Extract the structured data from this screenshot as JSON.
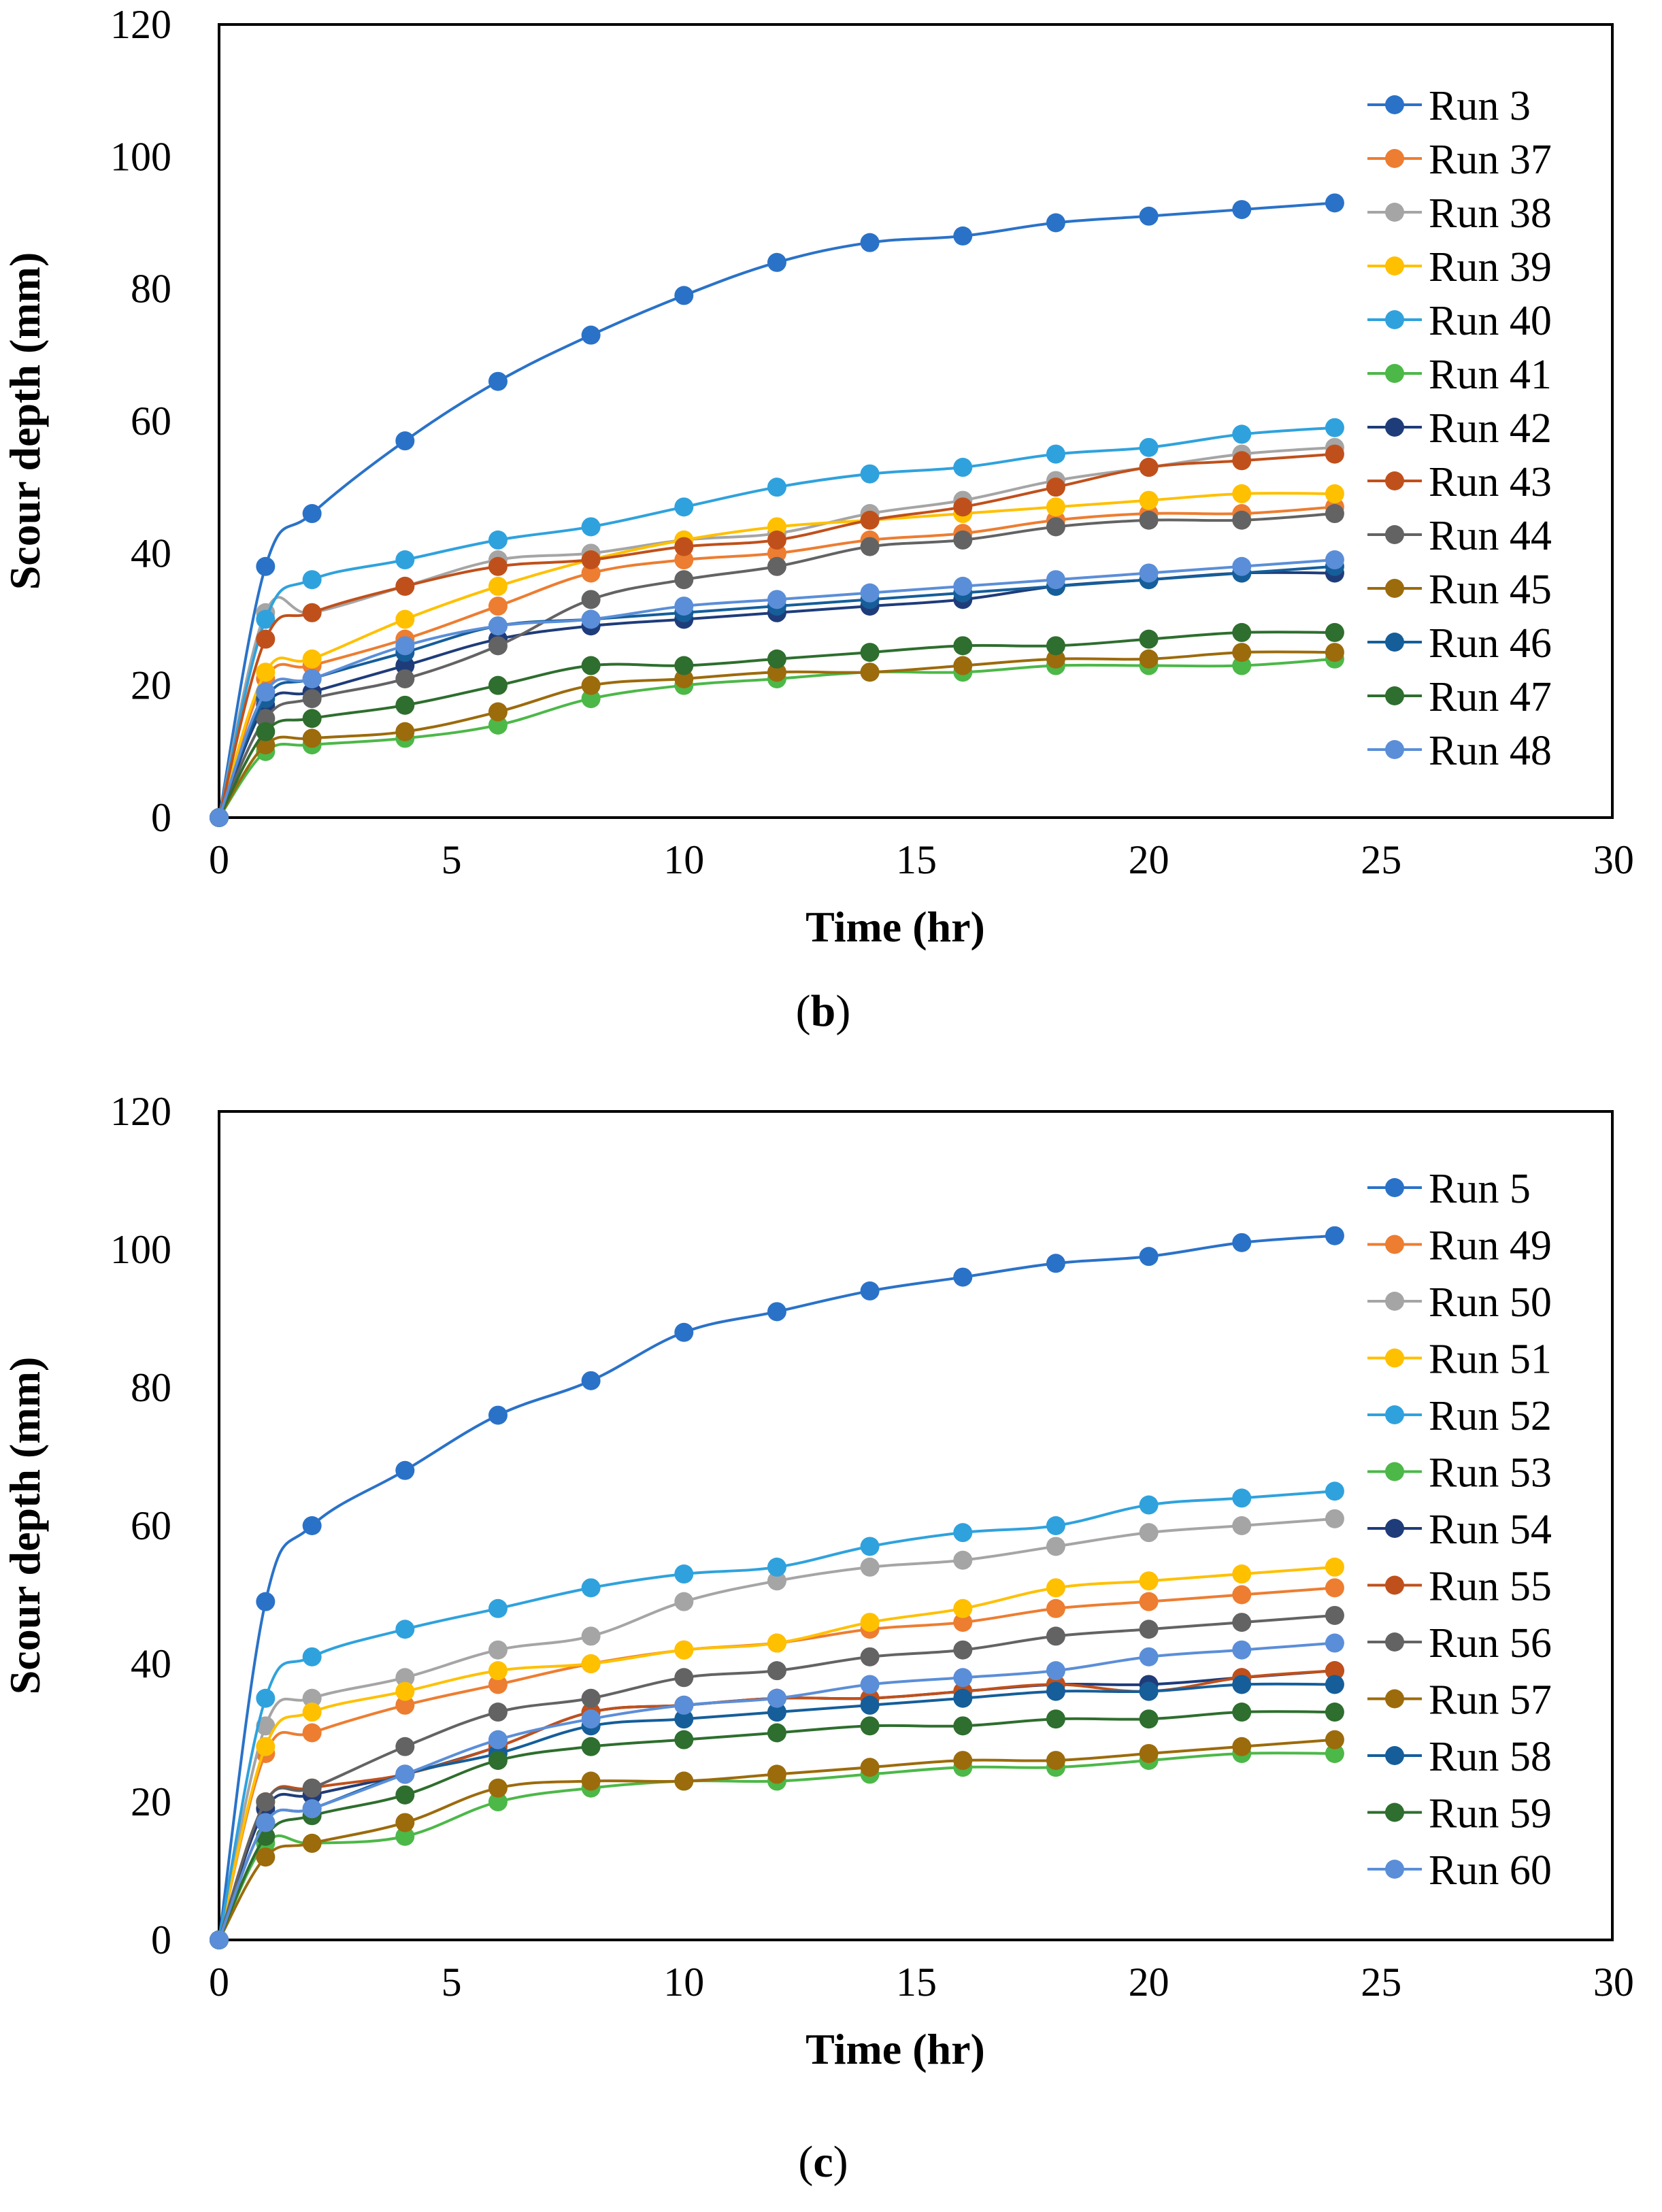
{
  "chart_data": [
    {
      "type": "line",
      "panel_label": "b",
      "xlabel": "Time (hr)",
      "ylabel": "Scour depth (mm)",
      "xlim": [
        0,
        30
      ],
      "ylim": [
        0,
        120
      ],
      "x_ticks": [
        "0",
        "5",
        "10",
        "15",
        "20",
        "25",
        "30"
      ],
      "y_ticks": [
        "0",
        "20",
        "40",
        "60",
        "80",
        "100",
        "120"
      ],
      "grid": false,
      "legend": "right",
      "x": [
        0,
        1,
        2,
        4,
        6,
        8,
        10,
        12,
        14,
        16,
        18,
        20,
        22,
        24
      ],
      "series": [
        {
          "name": "Run 3",
          "color": "#2a72c8",
          "values": [
            0,
            38,
            46,
            57,
            66,
            73,
            79,
            84,
            87,
            88,
            90,
            91,
            92,
            93
          ]
        },
        {
          "name": "Run 37",
          "color": "#ed7d31",
          "values": [
            0,
            21,
            23,
            27,
            32,
            37,
            39,
            40,
            42,
            43,
            45,
            46,
            46,
            47
          ]
        },
        {
          "name": "Run 38",
          "color": "#a5a5a5",
          "values": [
            0,
            31,
            31,
            35,
            39,
            40,
            42,
            43,
            46,
            48,
            51,
            53,
            55,
            56
          ]
        },
        {
          "name": "Run 39",
          "color": "#ffc000",
          "values": [
            0,
            22,
            24,
            30,
            35,
            39,
            42,
            44,
            45,
            46,
            47,
            48,
            49,
            49
          ]
        },
        {
          "name": "Run 40",
          "color": "#2fa2dd",
          "values": [
            0,
            30,
            36,
            39,
            42,
            44,
            47,
            50,
            52,
            53,
            55,
            56,
            58,
            59
          ]
        },
        {
          "name": "Run 41",
          "color": "#4cb848",
          "values": [
            0,
            10,
            11,
            12,
            14,
            18,
            20,
            21,
            22,
            22,
            23,
            23,
            23,
            24
          ]
        },
        {
          "name": "Run 42",
          "color": "#1f3c7a",
          "values": [
            0,
            17,
            19,
            23,
            27,
            29,
            30,
            31,
            32,
            33,
            35,
            36,
            37,
            37
          ]
        },
        {
          "name": "Run 43",
          "color": "#c0501b",
          "values": [
            0,
            27,
            31,
            35,
            38,
            39,
            41,
            42,
            45,
            47,
            50,
            53,
            54,
            55
          ]
        },
        {
          "name": "Run 44",
          "color": "#636363",
          "values": [
            0,
            15,
            18,
            21,
            26,
            33,
            36,
            38,
            41,
            42,
            44,
            45,
            45,
            46
          ]
        },
        {
          "name": "Run 45",
          "color": "#9c6b0c",
          "values": [
            0,
            11,
            12,
            13,
            16,
            20,
            21,
            22,
            22,
            23,
            24,
            24,
            25,
            25
          ]
        },
        {
          "name": "Run 46",
          "color": "#155e9a",
          "values": [
            0,
            18,
            21,
            25,
            29,
            30,
            31,
            32,
            33,
            34,
            35,
            36,
            37,
            38
          ]
        },
        {
          "name": "Run 47",
          "color": "#2e6e2e",
          "values": [
            0,
            13,
            15,
            17,
            20,
            23,
            23,
            24,
            25,
            26,
            26,
            27,
            28,
            28
          ]
        },
        {
          "name": "Run 48",
          "color": "#5b8ed8",
          "values": [
            0,
            19,
            21,
            26,
            29,
            30,
            32,
            33,
            34,
            35,
            36,
            37,
            38,
            39
          ]
        }
      ]
    },
    {
      "type": "line",
      "panel_label": "c",
      "xlabel": "Time (hr)",
      "ylabel": "Scour depth (mm)",
      "xlim": [
        0,
        30
      ],
      "ylim": [
        0,
        120
      ],
      "x_ticks": [
        "0",
        "5",
        "10",
        "15",
        "20",
        "25",
        "30"
      ],
      "y_ticks": [
        "0",
        "20",
        "40",
        "60",
        "80",
        "100",
        "120"
      ],
      "grid": false,
      "legend": "right",
      "x": [
        0,
        1,
        2,
        4,
        6,
        8,
        10,
        12,
        14,
        16,
        18,
        20,
        22,
        24
      ],
      "series": [
        {
          "name": "Run 5",
          "color": "#2a72c8",
          "values": [
            0,
            49,
            60,
            68,
            76,
            81,
            88,
            91,
            94,
            96,
            98,
            99,
            101,
            102
          ]
        },
        {
          "name": "Run 49",
          "color": "#ed7d31",
          "values": [
            0,
            27,
            30,
            34,
            37,
            40,
            42,
            43,
            45,
            46,
            48,
            49,
            50,
            51
          ]
        },
        {
          "name": "Run 50",
          "color": "#a5a5a5",
          "values": [
            0,
            31,
            35,
            38,
            42,
            44,
            49,
            52,
            54,
            55,
            57,
            59,
            60,
            61
          ]
        },
        {
          "name": "Run 51",
          "color": "#ffc000",
          "values": [
            0,
            28,
            33,
            36,
            39,
            40,
            42,
            43,
            46,
            48,
            51,
            52,
            53,
            54
          ]
        },
        {
          "name": "Run 52",
          "color": "#2fa2dd",
          "values": [
            0,
            35,
            41,
            45,
            48,
            51,
            53,
            54,
            57,
            59,
            60,
            63,
            64,
            65
          ]
        },
        {
          "name": "Run 53",
          "color": "#4cb848",
          "values": [
            0,
            14,
            14,
            15,
            20,
            22,
            23,
            23,
            24,
            25,
            25,
            26,
            27,
            27
          ]
        },
        {
          "name": "Run 54",
          "color": "#1f3c7a",
          "values": [
            0,
            19,
            21,
            24,
            28,
            33,
            34,
            35,
            35,
            36,
            37,
            37,
            38,
            39
          ]
        },
        {
          "name": "Run 55",
          "color": "#c0501b",
          "values": [
            0,
            20,
            22,
            24,
            28,
            33,
            34,
            35,
            35,
            36,
            37,
            36,
            38,
            39
          ]
        },
        {
          "name": "Run 56",
          "color": "#636363",
          "values": [
            0,
            20,
            22,
            28,
            33,
            35,
            38,
            39,
            41,
            42,
            44,
            45,
            46,
            47
          ]
        },
        {
          "name": "Run 57",
          "color": "#9c6b0c",
          "values": [
            0,
            12,
            14,
            17,
            22,
            23,
            23,
            24,
            25,
            26,
            26,
            27,
            28,
            29
          ]
        },
        {
          "name": "Run 58",
          "color": "#155e9a",
          "values": [
            0,
            17,
            19,
            24,
            27,
            31,
            32,
            33,
            34,
            35,
            36,
            36,
            37,
            37
          ]
        },
        {
          "name": "Run 59",
          "color": "#2e6e2e",
          "values": [
            0,
            15,
            18,
            21,
            26,
            28,
            29,
            30,
            31,
            31,
            32,
            32,
            33,
            33
          ]
        },
        {
          "name": "Run 60",
          "color": "#5b8ed8",
          "values": [
            0,
            17,
            19,
            24,
            29,
            32,
            34,
            35,
            37,
            38,
            39,
            41,
            42,
            43
          ]
        }
      ]
    }
  ]
}
